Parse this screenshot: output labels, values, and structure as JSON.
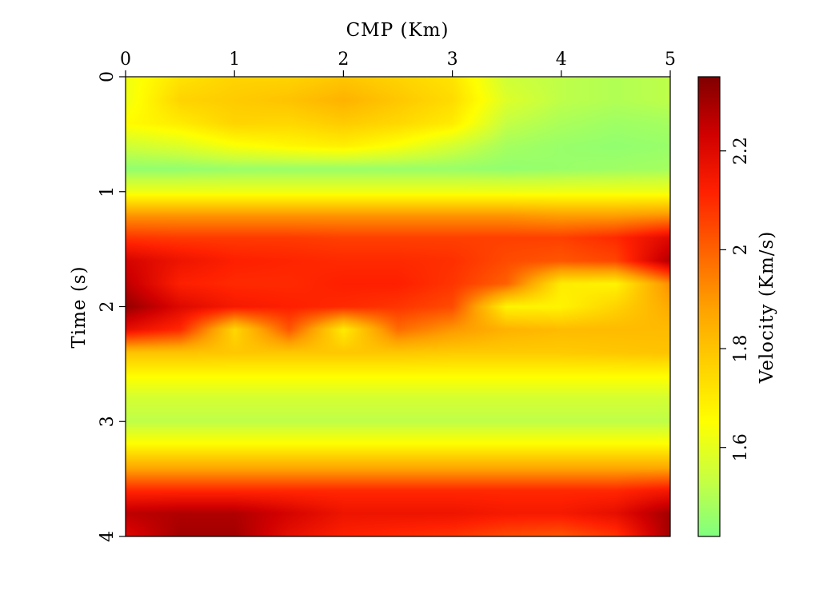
{
  "chart_data": {
    "type": "heatmap",
    "xlabel": "CMP (Km)",
    "ylabel": "Time (s)",
    "colorbar_label": "Velocity (Km/s)",
    "x_axis_position": "top",
    "xlim": [
      0,
      5
    ],
    "ylim": [
      0,
      4
    ],
    "y_inverted": true,
    "x_ticks": [
      "0",
      "1",
      "2",
      "3",
      "4",
      "5"
    ],
    "y_ticks": [
      "0",
      "1",
      "2",
      "3",
      "4"
    ],
    "colorbar_range": [
      1.42,
      2.35
    ],
    "colorbar_ticks": [
      "1.6",
      "1.8",
      "2",
      "2.2"
    ],
    "colormap": [
      "#80ff80",
      "#c8ff40",
      "#ffff00",
      "#ffd000",
      "#ffa000",
      "#ff6000",
      "#ff2000",
      "#d00000",
      "#800000"
    ],
    "x_samples": [
      0,
      0.5,
      1,
      1.5,
      2,
      2.5,
      3,
      3.5,
      4,
      4.5,
      5
    ],
    "y_samples": [
      0,
      0.2,
      0.4,
      0.6,
      0.8,
      1.0,
      1.2,
      1.4,
      1.6,
      1.8,
      2.0,
      2.2,
      2.4,
      2.6,
      2.8,
      3.0,
      3.2,
      3.4,
      3.6,
      3.8,
      4.0
    ],
    "velocity": [
      [
        1.62,
        1.72,
        1.76,
        1.76,
        1.79,
        1.76,
        1.72,
        1.55,
        1.52,
        1.5,
        1.52
      ],
      [
        1.62,
        1.76,
        1.78,
        1.8,
        1.84,
        1.79,
        1.74,
        1.58,
        1.52,
        1.5,
        1.52
      ],
      [
        1.66,
        1.7,
        1.76,
        1.75,
        1.78,
        1.75,
        1.7,
        1.53,
        1.49,
        1.47,
        1.48
      ],
      [
        1.55,
        1.58,
        1.64,
        1.67,
        1.69,
        1.64,
        1.56,
        1.48,
        1.46,
        1.45,
        1.46
      ],
      [
        1.45,
        1.45,
        1.46,
        1.46,
        1.46,
        1.46,
        1.46,
        1.45,
        1.46,
        1.47,
        1.48
      ],
      [
        1.62,
        1.62,
        1.62,
        1.62,
        1.62,
        1.62,
        1.62,
        1.62,
        1.62,
        1.62,
        1.62
      ],
      [
        1.9,
        1.9,
        1.9,
        1.9,
        1.9,
        1.9,
        1.9,
        1.9,
        1.88,
        1.88,
        1.9
      ],
      [
        2.08,
        2.07,
        2.07,
        2.07,
        2.06,
        2.06,
        2.06,
        2.06,
        2.06,
        2.1,
        2.2
      ],
      [
        2.22,
        2.16,
        2.12,
        2.11,
        2.1,
        2.1,
        2.09,
        2.04,
        2.02,
        2.05,
        2.28
      ],
      [
        2.26,
        2.12,
        2.1,
        2.1,
        2.12,
        2.12,
        2.08,
        2.0,
        1.7,
        1.68,
        1.92
      ],
      [
        2.32,
        2.2,
        2.14,
        2.12,
        2.1,
        2.08,
        2.04,
        1.68,
        1.68,
        1.76,
        1.86
      ],
      [
        2.18,
        2.1,
        1.75,
        2.02,
        1.7,
        1.98,
        1.9,
        1.84,
        1.82,
        1.82,
        1.82
      ],
      [
        1.8,
        1.8,
        1.79,
        1.79,
        1.79,
        1.79,
        1.78,
        1.78,
        1.78,
        1.79,
        1.8
      ],
      [
        1.66,
        1.66,
        1.66,
        1.66,
        1.66,
        1.66,
        1.66,
        1.66,
        1.66,
        1.66,
        1.66
      ],
      [
        1.56,
        1.56,
        1.56,
        1.56,
        1.56,
        1.56,
        1.56,
        1.56,
        1.56,
        1.56,
        1.56
      ],
      [
        1.52,
        1.52,
        1.52,
        1.52,
        1.52,
        1.52,
        1.52,
        1.52,
        1.52,
        1.52,
        1.52
      ],
      [
        1.66,
        1.66,
        1.66,
        1.66,
        1.66,
        1.66,
        1.66,
        1.66,
        1.66,
        1.66,
        1.66
      ],
      [
        1.86,
        1.86,
        1.86,
        1.86,
        1.86,
        1.86,
        1.86,
        1.86,
        1.86,
        1.86,
        1.86
      ],
      [
        2.1,
        2.1,
        2.1,
        2.1,
        2.1,
        2.1,
        2.1,
        2.1,
        2.1,
        2.1,
        2.14
      ],
      [
        2.26,
        2.28,
        2.28,
        2.22,
        2.16,
        2.16,
        2.16,
        2.14,
        2.14,
        2.18,
        2.3
      ],
      [
        2.2,
        2.3,
        2.3,
        2.18,
        2.12,
        2.1,
        2.08,
        2.04,
        2.02,
        2.08,
        2.3
      ]
    ]
  }
}
